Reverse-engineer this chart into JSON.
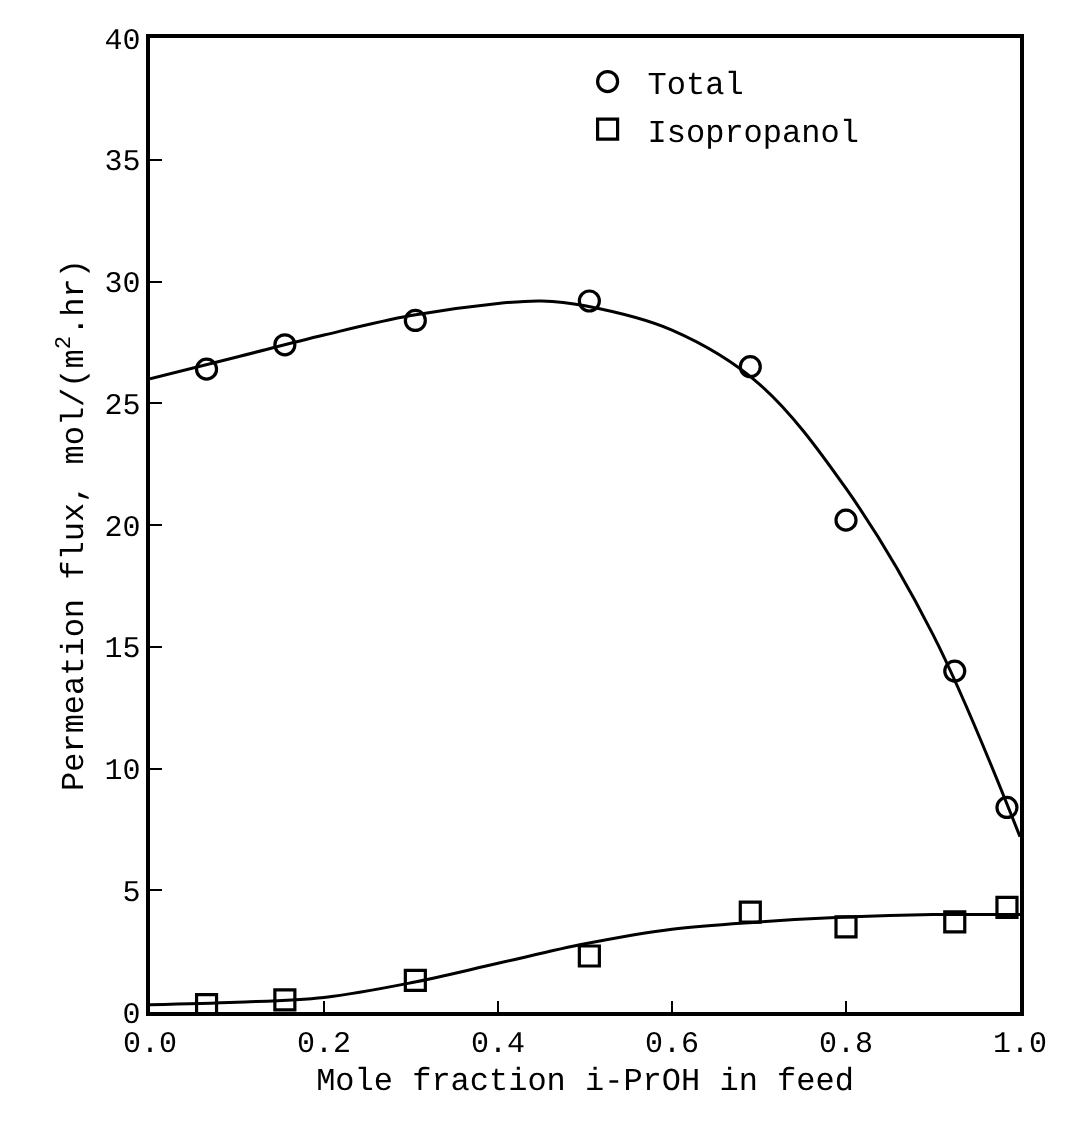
{
  "chart_data": {
    "type": "scatter",
    "xlabel": "Mole fraction i-PrOH in feed",
    "ylabel": "Permeation flux, mol/(m$^{2}$.hr)",
    "x": [
      0.065,
      0.155,
      0.305,
      0.505,
      0.69,
      0.8,
      0.925,
      0.985
    ],
    "series": [
      {
        "name": "Total",
        "color": "#000000",
        "marker": "circle",
        "values": [
          26.4,
          27.4,
          28.4,
          29.2,
          26.5,
          20.2,
          14.0,
          8.4
        ]
      },
      {
        "name": "Isopropanol",
        "color": "#000000",
        "marker": "square",
        "values": [
          0.3,
          0.5,
          1.3,
          2.3,
          4.1,
          3.5,
          3.7,
          4.3
        ]
      },
      {
        "type": "line",
        "color": "#000000",
        "x": [
          0,
          0.1,
          0.2,
          0.3,
          0.4,
          0.45,
          0.5,
          0.6,
          0.7,
          0.8,
          0.9,
          1.0
        ],
        "values": [
          26.0,
          26.9,
          27.8,
          28.6,
          29.1,
          29.2,
          29.0,
          28.0,
          25.8,
          21.5,
          15.5,
          7.2
        ]
      },
      {
        "type": "line",
        "color": "#000000",
        "x": [
          0,
          0.1,
          0.2,
          0.3,
          0.4,
          0.5,
          0.6,
          0.7,
          0.8,
          0.9,
          1.0
        ],
        "values": [
          0.3,
          0.4,
          0.6,
          1.2,
          2.0,
          2.8,
          3.4,
          3.7,
          3.9,
          4.0,
          4.0
        ]
      }
    ],
    "xlim": [
      0,
      1
    ],
    "xticks": [
      "0.0",
      0.2,
      0.4,
      0.6,
      0.8,
      "1.0"
    ],
    "ylim": [
      0,
      40
    ],
    "yticks": [
      0,
      5,
      10,
      15,
      20,
      25,
      30,
      35,
      40
    ],
    "legend": "top"
  }
}
